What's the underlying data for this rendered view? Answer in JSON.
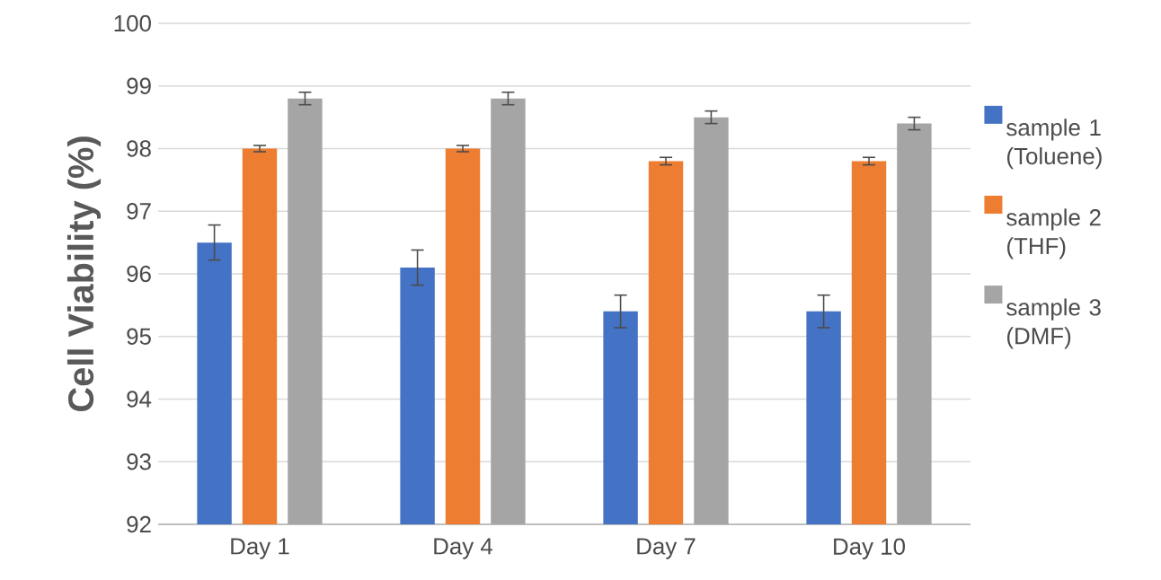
{
  "chart_data": {
    "type": "bar",
    "ylabel": "Cell Viability (%)",
    "categories": [
      "Day 1",
      "Day 4",
      "Day 7",
      "Day 10"
    ],
    "series": [
      {
        "name": "sample 1 (Toluene)",
        "color": "#4472c4",
        "values": [
          96.5,
          96.1,
          95.4,
          95.4
        ],
        "errors": [
          0.28,
          0.28,
          0.26,
          0.26
        ]
      },
      {
        "name": "sample 2 (THF)",
        "color": "#ed7d31",
        "values": [
          98.0,
          98.0,
          97.8,
          97.8
        ],
        "errors": [
          0.05,
          0.05,
          0.06,
          0.06
        ]
      },
      {
        "name": "sample 3 (DMF)",
        "color": "#a5a5a5",
        "values": [
          98.8,
          98.8,
          98.5,
          98.4
        ],
        "errors": [
          0.1,
          0.1,
          0.1,
          0.1
        ]
      }
    ],
    "ylim": [
      92,
      100
    ],
    "yticks": [
      92,
      93,
      94,
      95,
      96,
      97,
      98,
      99,
      100
    ],
    "grid": "y",
    "legend": "right"
  }
}
